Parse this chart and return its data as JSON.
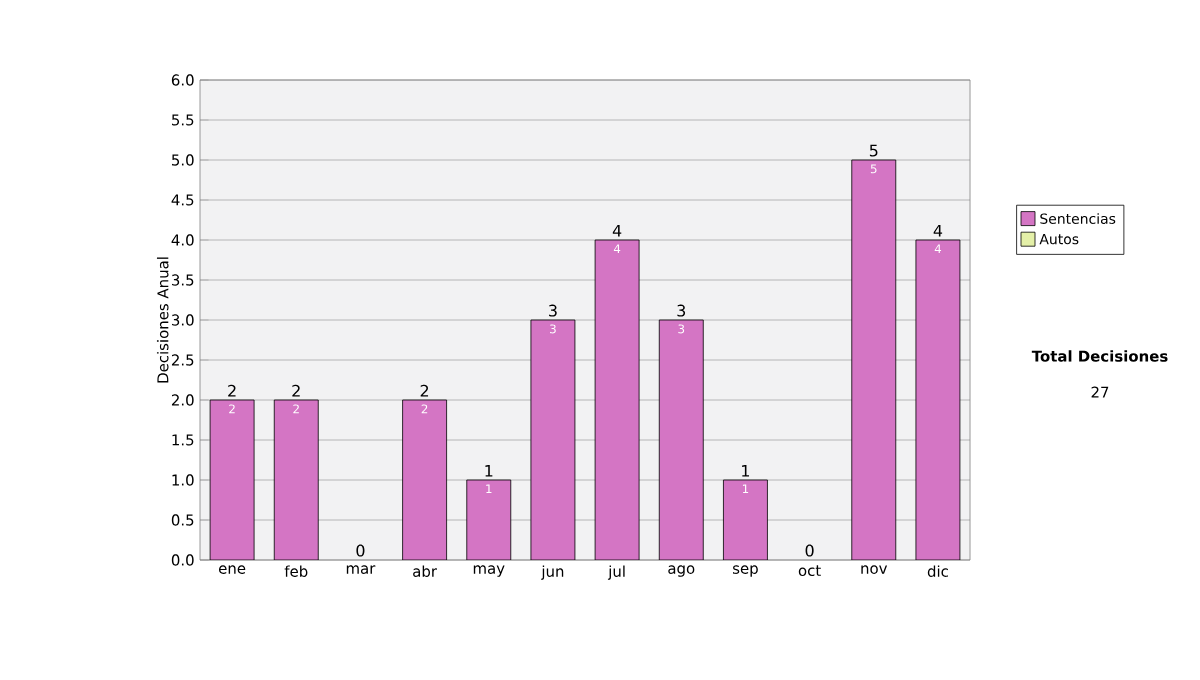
{
  "chart_data": {
    "type": "bar",
    "stacked": true,
    "ylabel": "Decisiones Anual",
    "categories": [
      "ene",
      "feb",
      "mar",
      "abr",
      "may",
      "jun",
      "jul",
      "ago",
      "sep",
      "oct",
      "nov",
      "dic"
    ],
    "series": [
      {
        "name": "Sentencias",
        "color": "#d475c4",
        "values": [
          2,
          2,
          0,
          2,
          1,
          3,
          4,
          3,
          1,
          0,
          5,
          4
        ],
        "value_labels": [
          "2",
          "2",
          null,
          "2",
          "1",
          "3",
          "4",
          "3",
          "1",
          null,
          "5",
          "4"
        ]
      },
      {
        "name": "Autos",
        "color": "#e4f0a8",
        "values": [
          0,
          0,
          0,
          0,
          0,
          0,
          0,
          0,
          0,
          0,
          0,
          0
        ]
      }
    ],
    "totals": [
      "2",
      "2",
      "0",
      "2",
      "1",
      "3",
      "4",
      "3",
      "1",
      "0",
      "5",
      "4"
    ],
    "ylim": [
      0,
      6
    ],
    "yticks": [
      {
        "value": 0,
        "label": "0.0"
      },
      {
        "value": 0.5,
        "label": "0.5"
      },
      {
        "value": 1,
        "label": "1.0"
      },
      {
        "value": 1.5,
        "label": "1.5"
      },
      {
        "value": 2,
        "label": "2.0"
      },
      {
        "value": 2.5,
        "label": "2.5"
      },
      {
        "value": 3,
        "label": "3.0"
      },
      {
        "value": 3.5,
        "label": "3.5"
      },
      {
        "value": 4,
        "label": "4.0"
      },
      {
        "value": 4.5,
        "label": "4.5"
      },
      {
        "value": 5,
        "label": "5.0"
      },
      {
        "value": 5.5,
        "label": "5.5"
      },
      {
        "value": 6,
        "label": "6.0"
      }
    ],
    "grid": "y",
    "legend": "right",
    "annotations": [
      "Total Decisiones",
      "27"
    ]
  }
}
